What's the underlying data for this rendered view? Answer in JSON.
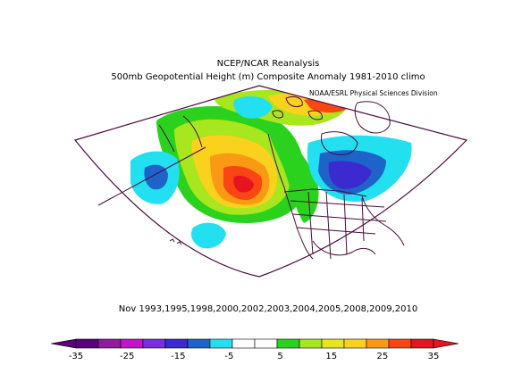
{
  "title": {
    "line1": "NCEP/NCAR Reanalysis",
    "line2": "500mb Geopotential Height (m) Composite Anomaly 1981-2010 climo"
  },
  "credit": "NOAA/ESRL Physical Sciences Division",
  "dates_label": "Nov 1993,1995,1998,2000,2002,2003,2004,2005,2008,2009,2010",
  "colorbar": {
    "colors": [
      "#5a0078",
      "#8f1c9e",
      "#c414c8",
      "#7a2ee0",
      "#3a2ad0",
      "#1e64c8",
      "#22e0f0",
      "#ffffff",
      "#ffffff",
      "#2ad21e",
      "#a8e61e",
      "#e6e61e",
      "#fad21e",
      "#fa9a14",
      "#fa4614",
      "#e6141e"
    ],
    "tick_labels": [
      "-35",
      "-25",
      "-15",
      "-5",
      "5",
      "15",
      "25",
      "35"
    ]
  }
}
